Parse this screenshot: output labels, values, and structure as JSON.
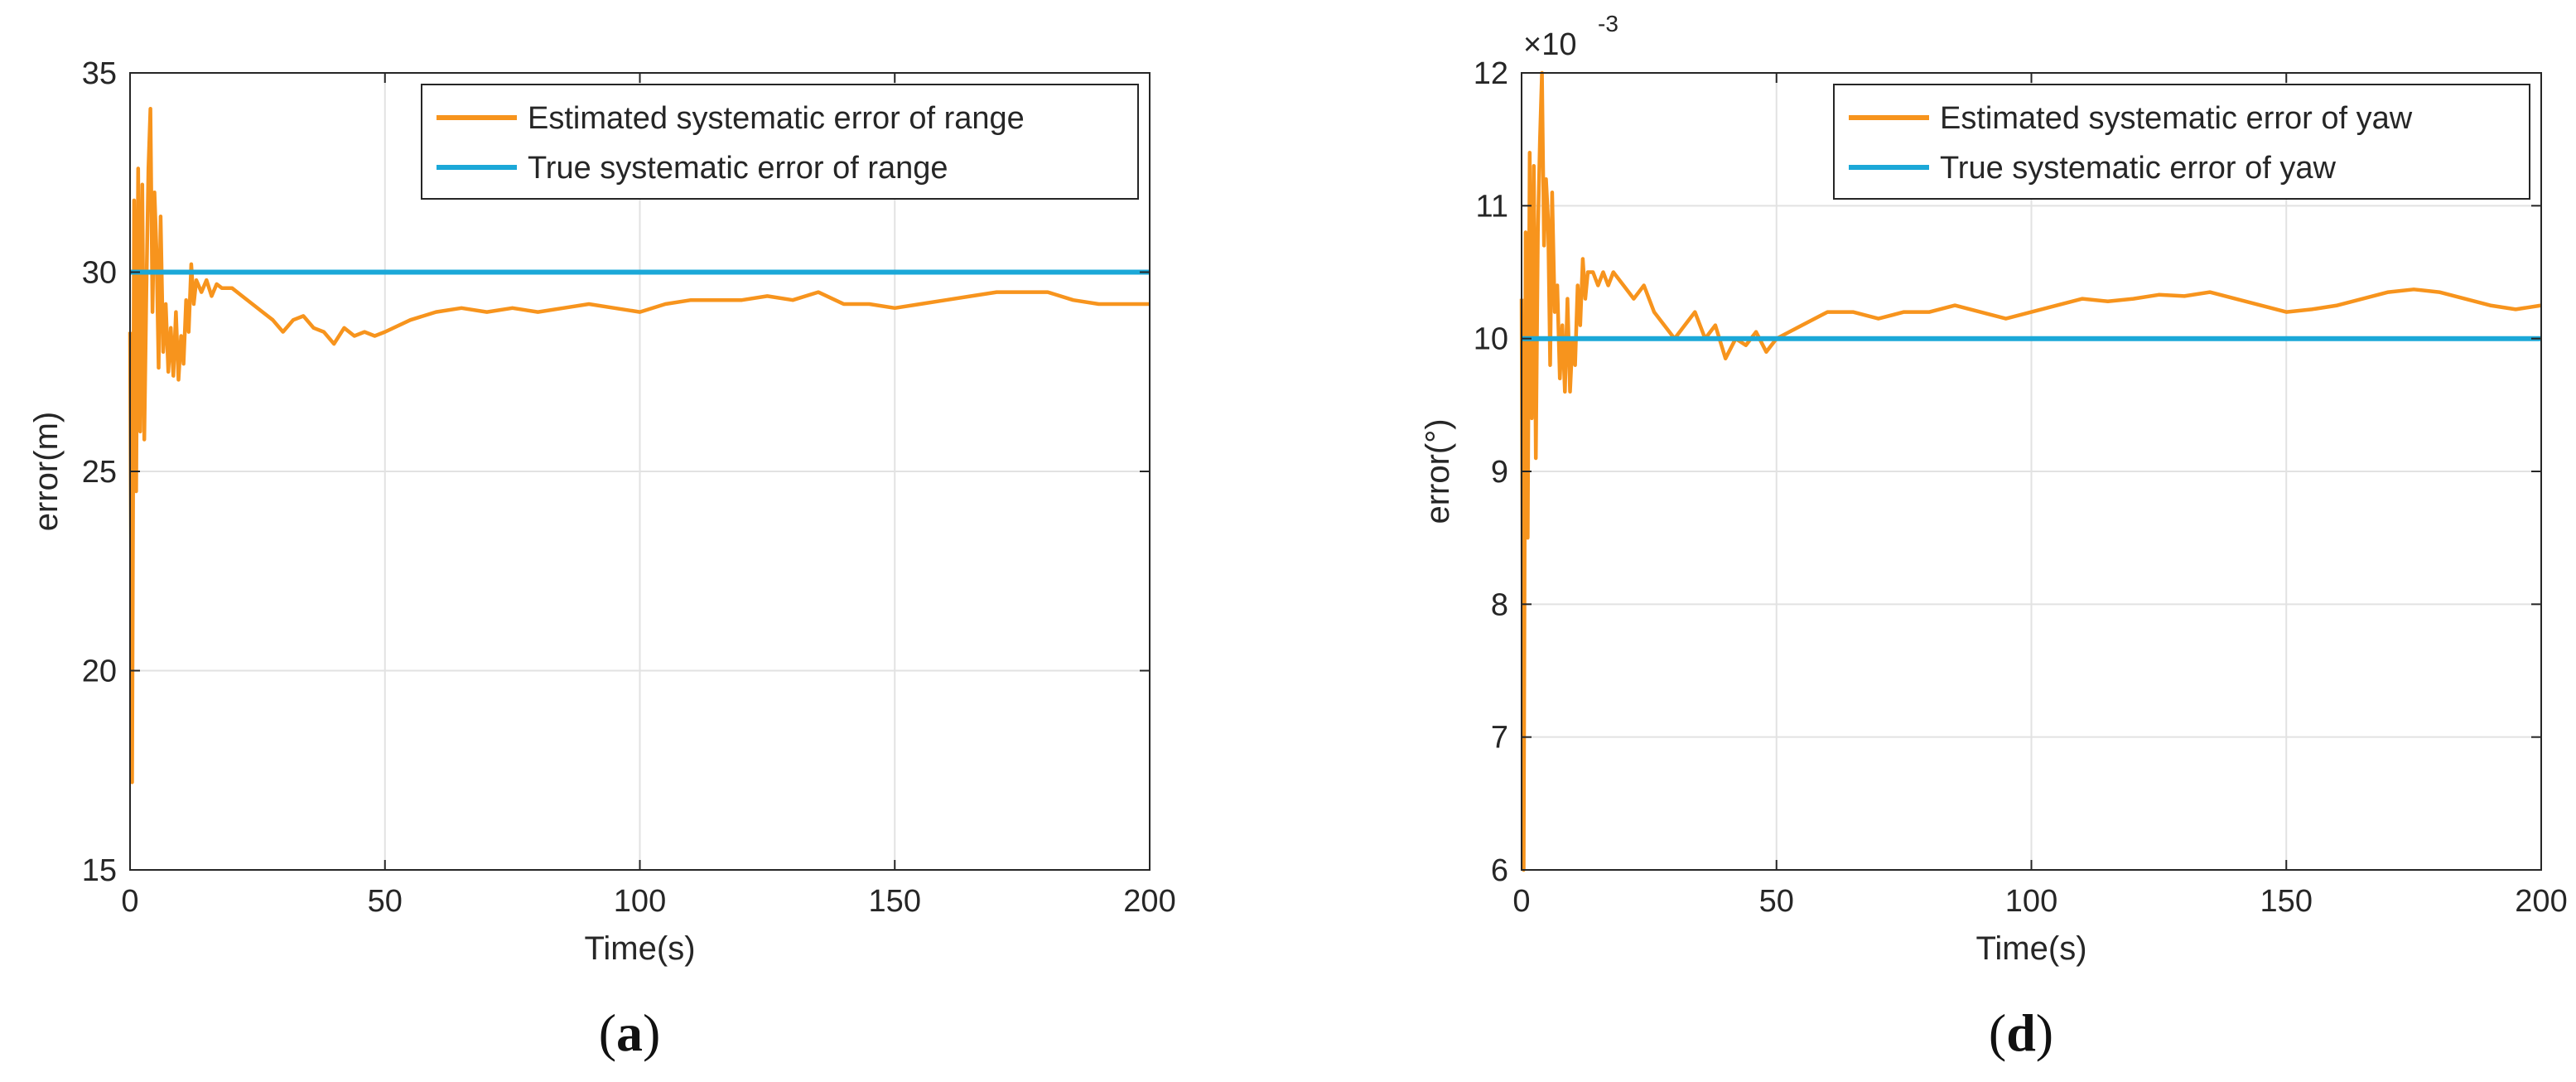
{
  "chart_data": [
    {
      "type": "line",
      "caption_open": "(",
      "caption_letter": "a",
      "caption_close": ")",
      "xlabel": "Time(s)",
      "ylabel": "error(m)",
      "xlim": [
        0,
        200
      ],
      "ylim": [
        15,
        35
      ],
      "xticks": [
        0,
        50,
        100,
        150,
        200
      ],
      "yticks": [
        15,
        20,
        25,
        30,
        35
      ],
      "exponent_label": "",
      "grid": true,
      "legend_position": "top-right",
      "series": [
        {
          "name": "Estimated systematic error of range",
          "color": "#F7941D",
          "x": [
            0,
            0.4,
            0.8,
            1.2,
            1.6,
            2.0,
            2.4,
            2.8,
            3.2,
            3.6,
            4.0,
            4.4,
            4.8,
            5.2,
            5.6,
            6.0,
            6.5,
            7.0,
            7.5,
            8.0,
            8.5,
            9.0,
            9.5,
            10,
            10.5,
            11,
            11.5,
            12,
            12.5,
            13,
            14,
            15,
            16,
            17,
            18,
            20,
            22,
            24,
            26,
            28,
            30,
            32,
            34,
            36,
            38,
            40,
            42,
            44,
            46,
            48,
            50,
            55,
            60,
            65,
            70,
            75,
            80,
            85,
            90,
            95,
            100,
            105,
            110,
            115,
            120,
            125,
            130,
            135,
            140,
            145,
            150,
            155,
            160,
            165,
            170,
            175,
            180,
            185,
            190,
            195,
            200
          ],
          "y": [
            28.5,
            17.2,
            31.8,
            24.5,
            32.6,
            26.0,
            32.2,
            25.8,
            29.5,
            32.6,
            34.1,
            29.0,
            32.0,
            30.5,
            27.6,
            31.4,
            28.0,
            29.2,
            27.5,
            28.6,
            27.4,
            29.0,
            27.3,
            28.4,
            27.7,
            29.3,
            28.5,
            30.2,
            29.2,
            29.8,
            29.5,
            29.8,
            29.4,
            29.7,
            29.6,
            29.6,
            29.4,
            29.2,
            29.0,
            28.8,
            28.5,
            28.8,
            28.9,
            28.6,
            28.5,
            28.2,
            28.6,
            28.4,
            28.5,
            28.4,
            28.5,
            28.8,
            29.0,
            29.1,
            29.0,
            29.1,
            29.0,
            29.1,
            29.2,
            29.1,
            29.0,
            29.2,
            29.3,
            29.3,
            29.3,
            29.4,
            29.3,
            29.5,
            29.2,
            29.2,
            29.1,
            29.2,
            29.3,
            29.4,
            29.5,
            29.5,
            29.5,
            29.3,
            29.2,
            29.2,
            29.2
          ]
        },
        {
          "name": "True systematic error of range",
          "color": "#1BA8D8",
          "x": [
            0,
            200
          ],
          "y": [
            30,
            30
          ]
        }
      ]
    },
    {
      "type": "line",
      "caption_open": "(",
      "caption_letter": "d",
      "caption_close": ")",
      "xlabel": "Time(s)",
      "ylabel": "error(°)",
      "xlim": [
        0,
        200
      ],
      "ylim": [
        6,
        12
      ],
      "xticks": [
        0,
        50,
        100,
        150,
        200
      ],
      "yticks": [
        6,
        7,
        8,
        9,
        10,
        11,
        12
      ],
      "exponent_label": "×10",
      "exponent_power": "-3",
      "grid": true,
      "legend_position": "top-right",
      "series": [
        {
          "name": "Estimated systematic error of yaw",
          "color": "#F7941D",
          "x": [
            0,
            0.4,
            0.8,
            1.2,
            1.6,
            2.0,
            2.4,
            2.8,
            3.2,
            3.6,
            4.0,
            4.4,
            4.8,
            5.2,
            5.6,
            6.0,
            6.5,
            7.0,
            7.5,
            8.0,
            8.5,
            9.0,
            9.5,
            10,
            10.5,
            11,
            11.5,
            12,
            12.5,
            13,
            14,
            15,
            16,
            17,
            18,
            20,
            22,
            24,
            26,
            28,
            30,
            32,
            34,
            36,
            38,
            40,
            42,
            44,
            46,
            48,
            50,
            55,
            60,
            65,
            70,
            75,
            80,
            85,
            90,
            95,
            100,
            105,
            110,
            115,
            120,
            125,
            130,
            135,
            140,
            145,
            150,
            155,
            160,
            165,
            170,
            175,
            180,
            185,
            190,
            195,
            200
          ],
          "y": [
            10.3,
            6.0,
            10.8,
            8.5,
            11.4,
            9.4,
            11.3,
            9.1,
            10.8,
            11.5,
            12.0,
            10.7,
            11.2,
            10.9,
            9.8,
            11.1,
            10.2,
            10.4,
            9.7,
            10.1,
            9.6,
            10.3,
            9.6,
            10.0,
            9.8,
            10.4,
            10.1,
            10.6,
            10.3,
            10.5,
            10.5,
            10.4,
            10.5,
            10.4,
            10.5,
            10.4,
            10.3,
            10.4,
            10.2,
            10.1,
            10.0,
            10.1,
            10.2,
            10.0,
            10.1,
            9.85,
            10.0,
            9.95,
            10.05,
            9.9,
            10.0,
            10.1,
            10.2,
            10.2,
            10.15,
            10.2,
            10.2,
            10.25,
            10.2,
            10.15,
            10.2,
            10.25,
            10.3,
            10.28,
            10.3,
            10.33,
            10.32,
            10.35,
            10.3,
            10.25,
            10.2,
            10.22,
            10.25,
            10.3,
            10.35,
            10.37,
            10.35,
            10.3,
            10.25,
            10.22,
            10.25
          ]
        },
        {
          "name": "True systematic error of yaw",
          "color": "#1BA8D8",
          "x": [
            0,
            200
          ],
          "y": [
            10,
            10
          ]
        }
      ]
    }
  ]
}
